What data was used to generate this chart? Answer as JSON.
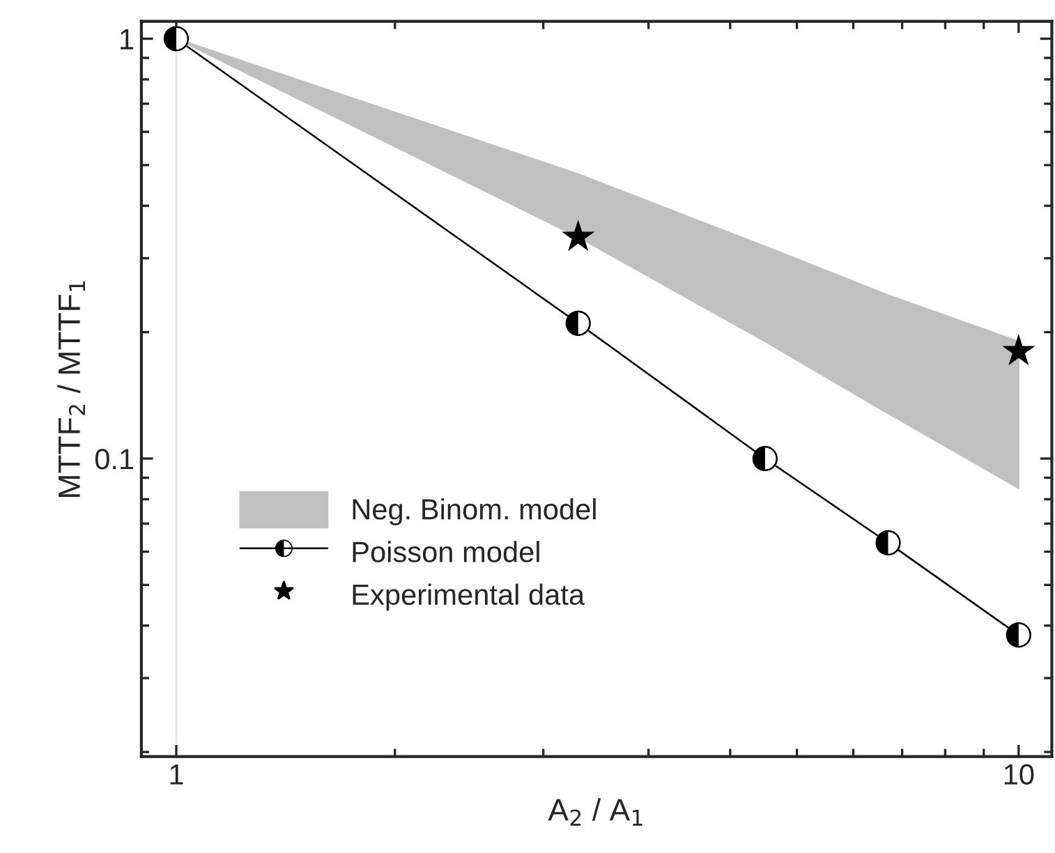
{
  "chart_data": {
    "type": "line",
    "xlabel": "A$_{2}$ / A$_{1}$",
    "ylabel": "MTTF$_{2}$ / MTTF$_{1}$",
    "log": "xy",
    "xlim": [
      0.909,
      10.95
    ],
    "ylim": [
      0.0195,
      1.1
    ],
    "xticks": [
      1,
      {
        "value": 1.818,
        "label": null
      },
      {
        "value": 2.727,
        "label": null
      },
      {
        "value": 3.636,
        "label": null
      },
      {
        "value": 4.545,
        "label": null
      },
      {
        "value": 5.455,
        "label": null
      },
      {
        "value": 6.364,
        "label": null
      },
      {
        "value": 7.273,
        "label": null
      },
      {
        "value": 8.182,
        "label": null
      },
      {
        "value": 9.091,
        "label": null
      },
      10
    ],
    "yticks": [
      {
        "value": 0.02,
        "label": null
      },
      {
        "value": 0.03,
        "label": null
      },
      {
        "value": 0.04,
        "label": null
      },
      {
        "value": 0.05,
        "label": null
      },
      {
        "value": 0.06,
        "label": null
      },
      {
        "value": 0.07,
        "label": null
      },
      {
        "value": 0.08,
        "label": null
      },
      {
        "value": 0.09,
        "label": null
      },
      0.1,
      {
        "value": 0.2,
        "label": null
      },
      {
        "value": 0.3,
        "label": null
      },
      {
        "value": 0.4,
        "label": null
      },
      {
        "value": 0.5,
        "label": null
      },
      {
        "value": 0.6,
        "label": null
      },
      {
        "value": 0.7,
        "label": null
      },
      {
        "value": 0.8,
        "label": null
      },
      {
        "value": 0.9,
        "label": null
      },
      1
    ],
    "grid": false,
    "legend": "bottom left",
    "ref_lines": [
      {
        "axis": "x",
        "value": 1,
        "color": "#e6e6e6"
      }
    ],
    "series": [
      {
        "type": "area",
        "name": "Neg. Binom. model",
        "color": "#c0c0c0",
        "x": [
          1,
          3,
          5,
          7,
          10
        ],
        "values": [
          null,
          null,
          null,
          null,
          null
        ],
        "lower": [
          1,
          0.337,
          0.19,
          0.128,
          0.085
        ],
        "upper": [
          1,
          0.476,
          0.32,
          0.245,
          0.19
        ]
      },
      {
        "type": "line",
        "name": "Poisson model",
        "color": "#000000",
        "marker": "circle",
        "x": [
          1,
          3,
          5,
          7,
          10
        ],
        "values": [
          1,
          0.21,
          0.1,
          0.063,
          0.038
        ]
      },
      {
        "type": "scatter",
        "name": "Experimental data",
        "color": "#000000",
        "marker": "star",
        "x": [
          3,
          10
        ],
        "values": [
          0.337,
          0.18
        ]
      }
    ]
  }
}
